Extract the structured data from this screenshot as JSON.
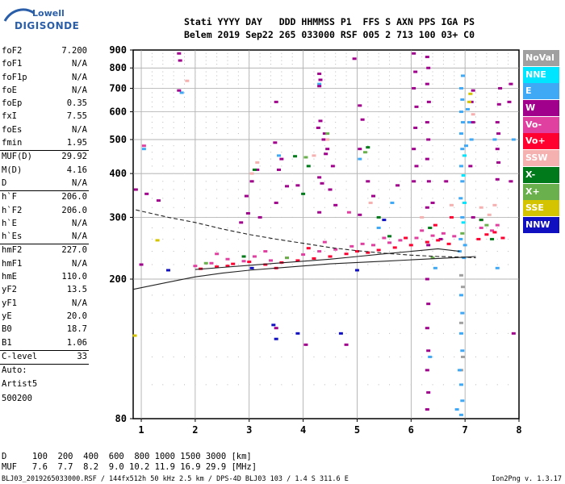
{
  "logo": {
    "top": "Lowell",
    "bottom": "DIGISONDE"
  },
  "header": {
    "line1": "Stati YYYY DAY   DDD HHMMSS P1  FFS S AXN PPS IGA PS",
    "line2": "Belem 2019 Sep22 265 033000 RSF 005 2 713 100 03+ C0"
  },
  "params_group1": [
    {
      "label": "foF2",
      "value": "7.200"
    },
    {
      "label": "foF1",
      "value": "N/A"
    },
    {
      "label": "foF1p",
      "value": "N/A"
    },
    {
      "label": "foE",
      "value": "N/A"
    },
    {
      "label": "foEp",
      "value": "0.35"
    },
    {
      "label": "fxI",
      "value": "7.55"
    },
    {
      "label": "foEs",
      "value": "N/A"
    },
    {
      "label": "fmin",
      "value": "1.95"
    }
  ],
  "params_group2": [
    {
      "label": "MUF(D)",
      "value": "29.92"
    },
    {
      "label": "M(D)",
      "value": "4.16"
    },
    {
      "label": "D",
      "value": "N/A"
    }
  ],
  "params_group3": [
    {
      "label": "h`F",
      "value": "206.0"
    },
    {
      "label": "h`F2",
      "value": "206.0"
    },
    {
      "label": "h`E",
      "value": "N/A"
    },
    {
      "label": "h`Es",
      "value": "N/A"
    }
  ],
  "params_group4": [
    {
      "label": "hmF2",
      "value": "227.0"
    },
    {
      "label": "hmF1",
      "value": "N/A"
    },
    {
      "label": "hmE",
      "value": "110.0"
    },
    {
      "label": "yF2",
      "value": "13.5"
    },
    {
      "label": "yF1",
      "value": "N/A"
    },
    {
      "label": "yE",
      "value": "20.0"
    },
    {
      "label": "B0",
      "value": "18.7"
    },
    {
      "label": "B1",
      "value": "1.06"
    }
  ],
  "params_group5": [
    {
      "label": "C-level",
      "value": "33"
    }
  ],
  "auto_lines": [
    "Auto:",
    "Artist5",
    "500200"
  ],
  "legend": [
    {
      "label": "NoVal",
      "color": "#a0a0a0"
    },
    {
      "label": "NNE",
      "color": "#00e5ff"
    },
    {
      "label": "E",
      "color": "#3fa9f5"
    },
    {
      "label": "W",
      "color": "#a0008c"
    },
    {
      "label": "Vo-",
      "color": "#e040a0"
    },
    {
      "label": "Vo+",
      "color": "#ff0030"
    },
    {
      "label": "SSW",
      "color": "#f5b0b0"
    },
    {
      "label": "X-",
      "color": "#007a1a"
    },
    {
      "label": "X+",
      "color": "#6ab04c"
    },
    {
      "label": "SSE",
      "color": "#d4c400"
    },
    {
      "label": "NNW",
      "color": "#1010c0"
    }
  ],
  "footer": {
    "d_line": "D     100  200  400  600  800 1000 1500 3000 [km]",
    "muf_line": "MUF   7.6  7.7  8.2  9.0 10.2 11.9 16.9 29.9 [MHz]",
    "source": "BLJ03_2019265033000.RSF / 144fx512h 50 kHz 2.5 km / DPS-4D BLJ03 103 / 1.4 S 311.6 E",
    "version": "Ion2Png v. 1.3.17"
  },
  "chart_data": {
    "type": "scatter",
    "title": "",
    "xlabel": "",
    "ylabel": "",
    "xlim": [
      0.85,
      8.0
    ],
    "ylim": [
      80,
      900
    ],
    "y_scale": "log",
    "xticks": [
      1,
      2,
      3,
      4,
      5,
      6,
      7,
      8
    ],
    "yticks": [
      80,
      200,
      300,
      400,
      500,
      600,
      700,
      800,
      900
    ],
    "grid": true,
    "legend_position": "right",
    "curves": [
      {
        "style": "dashed",
        "x": [
          0.9,
          1.5,
          2.0,
          2.5,
          3.0,
          3.5,
          4.0,
          4.5,
          5.0,
          5.5,
          6.0,
          6.5,
          7.0,
          7.2
        ],
        "y": [
          315,
          300,
          290,
          278,
          268,
          260,
          253,
          246,
          241,
          237,
          234,
          232,
          231,
          230
        ]
      },
      {
        "style": "solid",
        "x": [
          0.85,
          1.5,
          2.0,
          2.5,
          3.0,
          3.5,
          4.0,
          4.5,
          5.0,
          5.5,
          6.0,
          6.5,
          7.0,
          7.2
        ],
        "y": [
          187,
          196,
          203,
          208,
          212,
          215,
          218,
          221,
          223,
          225,
          227,
          229,
          231,
          232
        ]
      },
      {
        "style": "solid",
        "x": [
          2.0,
          2.5,
          3.0,
          3.5,
          4.0,
          4.5,
          5.0,
          5.5,
          6.0,
          6.5,
          6.9
        ],
        "y": [
          213,
          216,
          219,
          222,
          225,
          228,
          232,
          236,
          240,
          244,
          240
        ]
      }
    ],
    "series": [
      {
        "name": "NoVal",
        "points": [
          [
            6.93,
            205
          ],
          [
            6.96,
            190
          ],
          [
            6.93,
            150
          ],
          [
            6.96,
            120
          ],
          [
            6.93,
            110
          ]
        ]
      },
      {
        "name": "NNE",
        "points": [
          [
            6.97,
            290
          ],
          [
            6.99,
            330
          ],
          [
            6.97,
            395
          ],
          [
            6.99,
            450
          ]
        ]
      },
      {
        "name": "E",
        "points": [
          [
            6.92,
            260
          ],
          [
            6.95,
            300
          ],
          [
            6.92,
            340
          ],
          [
            6.95,
            380
          ],
          [
            6.93,
            420
          ],
          [
            6.95,
            470
          ],
          [
            6.93,
            520
          ],
          [
            6.96,
            560
          ],
          [
            6.93,
            600
          ],
          [
            6.95,
            650
          ],
          [
            6.93,
            700
          ],
          [
            6.96,
            760
          ],
          [
            6.93,
            180
          ],
          [
            6.95,
            160
          ],
          [
            6.93,
            140
          ],
          [
            6.95,
            125
          ],
          [
            6.93,
            100
          ],
          [
            6.95,
            90
          ],
          [
            6.93,
            82
          ],
          [
            7.02,
            480
          ],
          [
            7.05,
            610
          ],
          [
            6.9,
            240
          ],
          [
            6.98,
            230
          ],
          [
            7.0,
            250
          ],
          [
            7.08,
            560
          ],
          [
            7.12,
            500
          ],
          [
            7.55,
            500
          ],
          [
            7.6,
            215
          ],
          [
            1.05,
            470
          ],
          [
            1.75,
            680
          ],
          [
            3.55,
            450
          ],
          [
            4.3,
            720
          ],
          [
            5.05,
            440
          ],
          [
            5.4,
            280
          ],
          [
            5.65,
            330
          ],
          [
            6.45,
            215
          ],
          [
            6.9,
            110
          ],
          [
            6.35,
            120
          ],
          [
            6.85,
            85
          ],
          [
            7.9,
            500
          ]
        ]
      },
      {
        "name": "W",
        "points": [
          [
            1.7,
            880
          ],
          [
            1.72,
            840
          ],
          [
            1.7,
            690
          ],
          [
            4.3,
            770
          ],
          [
            4.32,
            740
          ],
          [
            4.3,
            710
          ],
          [
            4.32,
            565
          ],
          [
            4.28,
            540
          ],
          [
            4.4,
            520
          ],
          [
            4.38,
            500
          ],
          [
            4.45,
            470
          ],
          [
            4.42,
            455
          ],
          [
            4.55,
            420
          ],
          [
            4.3,
            390
          ],
          [
            4.35,
            375
          ],
          [
            4.5,
            360
          ],
          [
            4.6,
            325
          ],
          [
            4.3,
            310
          ],
          [
            3.9,
            370
          ],
          [
            3.7,
            368
          ],
          [
            3.15,
            410
          ],
          [
            3.05,
            380
          ],
          [
            2.95,
            345
          ],
          [
            2.98,
            308
          ],
          [
            2.85,
            290
          ],
          [
            3.2,
            300
          ],
          [
            3.5,
            640
          ],
          [
            3.48,
            490
          ],
          [
            3.5,
            330
          ],
          [
            3.55,
            410
          ],
          [
            3.6,
            440
          ],
          [
            3.5,
            145
          ],
          [
            4.05,
            130
          ],
          [
            4.8,
            130
          ],
          [
            5.05,
            625
          ],
          [
            5.1,
            570
          ],
          [
            5.05,
            470
          ],
          [
            5.2,
            380
          ],
          [
            5.3,
            345
          ],
          [
            5.05,
            305
          ],
          [
            5.75,
            370
          ],
          [
            6.05,
            880
          ],
          [
            6.08,
            780
          ],
          [
            6.05,
            700
          ],
          [
            6.1,
            620
          ],
          [
            6.08,
            540
          ],
          [
            6.05,
            470
          ],
          [
            6.1,
            420
          ],
          [
            6.05,
            380
          ],
          [
            6.3,
            860
          ],
          [
            6.32,
            800
          ],
          [
            6.3,
            720
          ],
          [
            6.33,
            640
          ],
          [
            6.3,
            560
          ],
          [
            6.32,
            500
          ],
          [
            6.3,
            440
          ],
          [
            6.33,
            380
          ],
          [
            6.3,
            320
          ],
          [
            6.32,
            250
          ],
          [
            6.3,
            200
          ],
          [
            6.32,
            170
          ],
          [
            6.3,
            145
          ],
          [
            6.32,
            125
          ],
          [
            6.3,
            110
          ],
          [
            6.32,
            95
          ],
          [
            6.3,
            85
          ],
          [
            6.55,
            260
          ],
          [
            6.65,
            380
          ],
          [
            6.4,
            330
          ],
          [
            7.15,
            690
          ],
          [
            7.12,
            640
          ],
          [
            7.15,
            560
          ],
          [
            7.1,
            420
          ],
          [
            7.65,
            700
          ],
          [
            7.63,
            630
          ],
          [
            7.6,
            560
          ],
          [
            7.62,
            520
          ],
          [
            7.6,
            470
          ],
          [
            7.62,
            430
          ],
          [
            7.6,
            385
          ],
          [
            7.85,
            720
          ],
          [
            7.82,
            640
          ],
          [
            7.85,
            380
          ],
          [
            7.9,
            140
          ],
          [
            1.0,
            220
          ],
          [
            0.9,
            360
          ],
          [
            1.1,
            350
          ],
          [
            1.32,
            335
          ],
          [
            7.15,
            300
          ],
          [
            4.95,
            850
          ]
        ]
      },
      {
        "name": "Vo-",
        "points": [
          [
            2.0,
            218
          ],
          [
            2.3,
            222
          ],
          [
            2.6,
            228
          ],
          [
            2.9,
            225
          ],
          [
            3.1,
            232
          ],
          [
            3.4,
            226
          ],
          [
            3.7,
            230
          ],
          [
            4.0,
            235
          ],
          [
            4.3,
            240
          ],
          [
            4.6,
            243
          ],
          [
            4.9,
            248
          ],
          [
            5.1,
            252
          ],
          [
            5.3,
            250
          ],
          [
            5.6,
            254
          ],
          [
            5.8,
            258
          ],
          [
            6.1,
            262
          ],
          [
            6.4,
            266
          ],
          [
            6.6,
            270
          ],
          [
            6.8,
            265
          ],
          [
            7.3,
            280
          ],
          [
            7.5,
            275
          ],
          [
            7.6,
            285
          ],
          [
            3.3,
            240
          ],
          [
            4.4,
            255
          ],
          [
            5.5,
            262
          ],
          [
            6.2,
            275
          ],
          [
            2.4,
            236
          ],
          [
            1.05,
            480
          ],
          [
            4.85,
            310
          ]
        ]
      },
      {
        "name": "Vo+",
        "points": [
          [
            2.1,
            214
          ],
          [
            2.4,
            217
          ],
          [
            2.7,
            221
          ],
          [
            3.0,
            224
          ],
          [
            3.3,
            220
          ],
          [
            3.6,
            223
          ],
          [
            3.9,
            226
          ],
          [
            4.2,
            229
          ],
          [
            4.5,
            232
          ],
          [
            4.8,
            236
          ],
          [
            5.0,
            240
          ],
          [
            5.2,
            238
          ],
          [
            5.4,
            242
          ],
          [
            5.7,
            246
          ],
          [
            6.0,
            250
          ],
          [
            6.3,
            255
          ],
          [
            6.5,
            258
          ],
          [
            6.7,
            252
          ],
          [
            7.25,
            260
          ],
          [
            7.4,
            268
          ],
          [
            7.55,
            272
          ],
          [
            7.7,
            262
          ],
          [
            4.1,
            245
          ],
          [
            5.9,
            262
          ],
          [
            6.45,
            285
          ],
          [
            3.5,
            215
          ],
          [
            2.6,
            218
          ],
          [
            7.3,
            295
          ],
          [
            6.75,
            300
          ]
        ]
      },
      {
        "name": "SSW",
        "points": [
          [
            1.85,
            735
          ],
          [
            3.15,
            430
          ],
          [
            3.05,
            400
          ],
          [
            4.2,
            450
          ],
          [
            4.45,
            500
          ],
          [
            5.25,
            330
          ],
          [
            6.2,
            300
          ],
          [
            6.75,
            325
          ],
          [
            7.3,
            320
          ],
          [
            7.45,
            305
          ],
          [
            7.55,
            325
          ],
          [
            7.15,
            590
          ]
        ]
      },
      {
        "name": "X-",
        "points": [
          [
            3.1,
            410
          ],
          [
            3.85,
            448
          ],
          [
            4.1,
            420
          ],
          [
            4.0,
            350
          ],
          [
            5.6,
            265
          ],
          [
            6.35,
            280
          ],
          [
            5.2,
            475
          ],
          [
            7.3,
            295
          ],
          [
            7.5,
            260
          ],
          [
            2.9,
            232
          ],
          [
            5.4,
            300
          ]
        ]
      },
      {
        "name": "X+",
        "points": [
          [
            4.05,
            445
          ],
          [
            4.45,
            520
          ],
          [
            5.15,
            460
          ],
          [
            6.4,
            230
          ],
          [
            3.7,
            230
          ],
          [
            6.95,
            270
          ],
          [
            7.4,
            285
          ],
          [
            2.2,
            222
          ]
        ]
      },
      {
        "name": "SSE",
        "points": [
          [
            1.3,
            258
          ],
          [
            0.88,
            138
          ],
          [
            7.1,
            675
          ],
          [
            7.08,
            640
          ]
        ]
      },
      {
        "name": "NNW",
        "points": [
          [
            3.45,
            148
          ],
          [
            3.5,
            135
          ],
          [
            3.05,
            215
          ],
          [
            5.0,
            212
          ],
          [
            4.7,
            140
          ],
          [
            1.5,
            212
          ],
          [
            3.9,
            140
          ],
          [
            5.5,
            295
          ]
        ]
      }
    ]
  }
}
